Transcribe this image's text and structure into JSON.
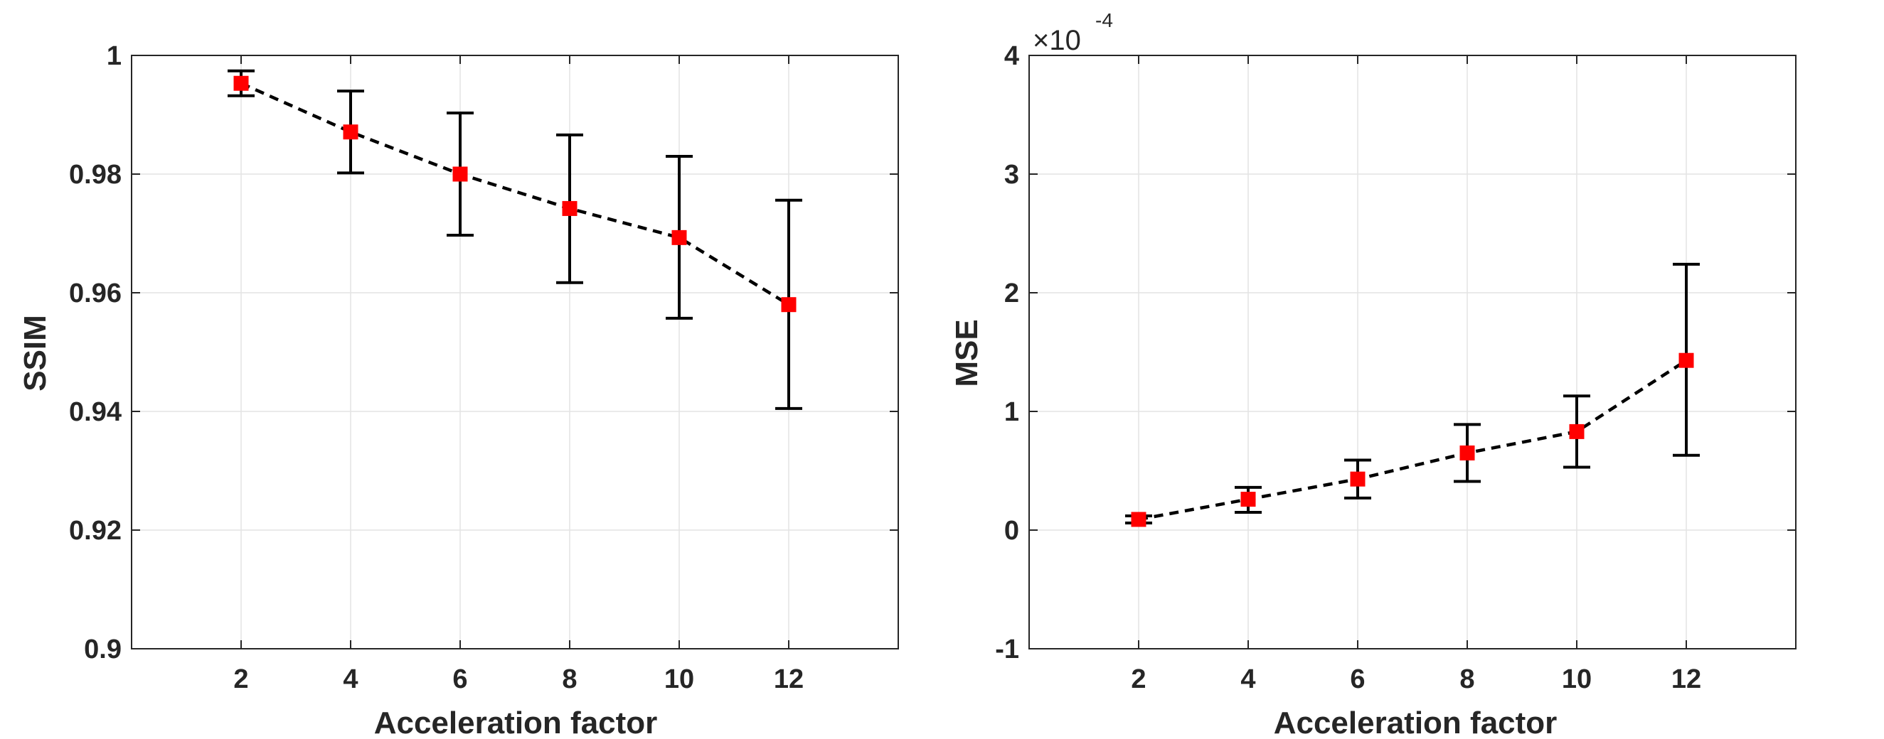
{
  "chart_data": [
    {
      "type": "line",
      "id": "ssim",
      "title": "",
      "xlabel": "Acceleration factor",
      "ylabel": "SSIM",
      "x": [
        2,
        4,
        6,
        8,
        10,
        12
      ],
      "y": [
        0.9953,
        0.9871,
        0.98,
        0.9742,
        0.9693,
        0.958
      ],
      "err_low": [
        0.9932,
        0.9802,
        0.9697,
        0.9617,
        0.9557,
        0.9405
      ],
      "err_high": [
        0.9974,
        0.994,
        0.9903,
        0.9866,
        0.983,
        0.9756
      ],
      "xlim": [
        0,
        14
      ],
      "ylim": [
        0.9,
        1.0
      ],
      "xticks": [
        2,
        4,
        6,
        8,
        10,
        12
      ],
      "xtick_labels": [
        "2",
        "4",
        "6",
        "8",
        "10",
        "12"
      ],
      "yticks": [
        0.9,
        0.92,
        0.94,
        0.96,
        0.98,
        1.0
      ],
      "ytick_labels": [
        "0.9",
        "0.92",
        "0.94",
        "0.96",
        "0.98",
        "1"
      ],
      "grid": true,
      "line_style": "dashed",
      "line_color": "#000000",
      "marker": "square",
      "marker_color": "#ff0000",
      "errorbar_color": "#000000"
    },
    {
      "type": "line",
      "id": "mse",
      "title": "",
      "xlabel": "Acceleration factor",
      "ylabel": "MSE",
      "exponent_base": "×10",
      "exponent": "-4",
      "x": [
        2,
        4,
        6,
        8,
        10,
        12
      ],
      "y": [
        0.09,
        0.26,
        0.43,
        0.65,
        0.83,
        1.43
      ],
      "err_low": [
        0.06,
        0.15,
        0.27,
        0.41,
        0.53,
        0.63
      ],
      "err_high": [
        0.12,
        0.36,
        0.59,
        0.89,
        1.13,
        2.24
      ],
      "xlim": [
        0,
        14
      ],
      "ylim": [
        -1,
        4
      ],
      "xticks": [
        2,
        4,
        6,
        8,
        10,
        12
      ],
      "xtick_labels": [
        "2",
        "4",
        "6",
        "8",
        "10",
        "12"
      ],
      "yticks": [
        -1,
        0,
        1,
        2,
        3,
        4
      ],
      "ytick_labels": [
        "-1",
        "0",
        "1",
        "2",
        "3",
        "4"
      ],
      "grid": true,
      "line_style": "dashed",
      "line_color": "#000000",
      "marker": "square",
      "marker_color": "#ff0000",
      "errorbar_color": "#000000"
    }
  ]
}
